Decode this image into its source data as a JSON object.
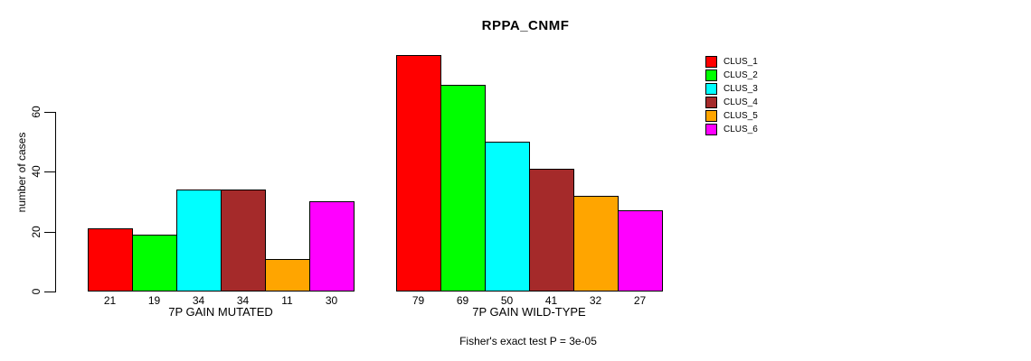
{
  "chart_data": {
    "type": "bar",
    "title": "RPPA_CNMF",
    "ylabel": "number of cases",
    "xlabel": "",
    "ylim": [
      0,
      60
    ],
    "yticks": [
      0,
      20,
      40,
      60
    ],
    "grid": false,
    "legend_position": "right",
    "categories": [
      "7P GAIN MUTATED",
      "7P GAIN WILD-TYPE"
    ],
    "series": [
      {
        "name": "CLUS_1",
        "color": "#FF0000",
        "values": [
          21,
          79
        ]
      },
      {
        "name": "CLUS_2",
        "color": "#00FF00",
        "values": [
          19,
          69
        ]
      },
      {
        "name": "CLUS_3",
        "color": "#00FFFF",
        "values": [
          34,
          50
        ]
      },
      {
        "name": "CLUS_4",
        "color": "#A52A2A",
        "values": [
          34,
          41
        ]
      },
      {
        "name": "CLUS_5",
        "color": "#FFA500",
        "values": [
          11,
          32
        ]
      },
      {
        "name": "CLUS_6",
        "color": "#FF00FF",
        "values": [
          30,
          27
        ]
      }
    ],
    "bar_value_labels": [
      [
        21,
        19,
        34,
        34,
        11,
        30
      ],
      [
        79,
        69,
        50,
        41,
        32,
        27
      ]
    ],
    "annotation": "Fisher's exact test P = 3e-05"
  }
}
